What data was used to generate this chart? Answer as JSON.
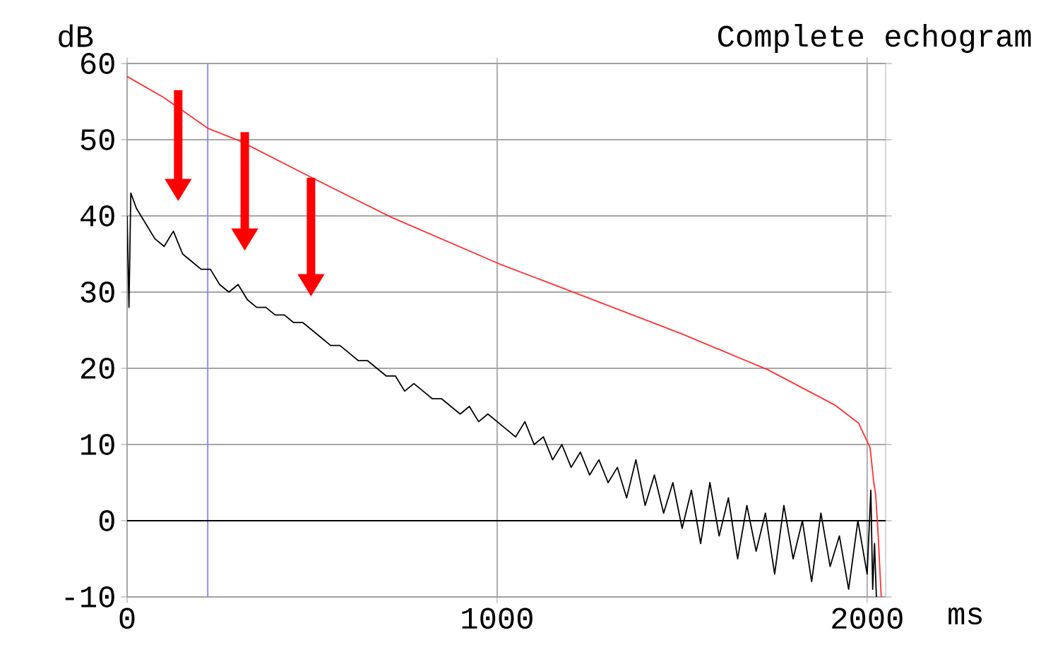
{
  "chart_data": {
    "type": "line",
    "title": "Complete echogram",
    "xlabel": "ms",
    "ylabel": "dB",
    "xlim": [
      0,
      2050
    ],
    "ylim": [
      -10,
      60
    ],
    "xticks": [
      0,
      1000,
      2000
    ],
    "yticks": [
      -10,
      0,
      10,
      20,
      30,
      40,
      50,
      60
    ],
    "grid": true,
    "marker": "none",
    "line_style": "solid",
    "ref_lines": [
      {
        "axis": "x",
        "value": 218,
        "color": "#8080ff"
      },
      {
        "axis": "y",
        "value": 0,
        "color": "#000000"
      }
    ],
    "series": [
      {
        "color": "#ff3030",
        "x": [
          0,
          100,
          218,
          306,
          500,
          715,
          1006,
          1216,
          1500,
          1732,
          1912,
          1977,
          2008,
          2018,
          2023,
          2030,
          2038
        ],
        "values": [
          58.3,
          55.5,
          51.5,
          49.8,
          45,
          39.8,
          33.7,
          29.8,
          24.5,
          19.8,
          15.2,
          12.8,
          9.6,
          5,
          3.5,
          -2,
          -10
        ]
      },
      {
        "color": "#000000",
        "x": [
          0,
          5,
          10,
          25,
          50,
          75,
          100,
          125,
          150,
          175,
          200,
          225,
          250,
          275,
          300,
          325,
          350,
          375,
          400,
          425,
          450,
          475,
          500,
          525,
          550,
          575,
          600,
          625,
          650,
          675,
          700,
          725,
          750,
          775,
          800,
          825,
          850,
          875,
          900,
          925,
          950,
          975,
          1000,
          1025,
          1050,
          1075,
          1100,
          1125,
          1150,
          1175,
          1200,
          1225,
          1250,
          1275,
          1300,
          1325,
          1350,
          1375,
          1400,
          1425,
          1450,
          1475,
          1500,
          1525,
          1550,
          1575,
          1600,
          1625,
          1650,
          1675,
          1700,
          1725,
          1750,
          1775,
          1800,
          1825,
          1850,
          1875,
          1900,
          1925,
          1950,
          1975,
          2000,
          2010,
          2015,
          2020,
          2025
        ],
        "values": [
          40,
          28,
          43,
          41,
          39,
          37,
          36,
          38,
          35,
          34,
          33,
          33,
          31,
          30,
          31,
          29,
          28,
          28,
          27,
          27,
          26,
          26,
          25,
          24,
          23,
          23,
          22,
          21,
          21,
          20,
          19,
          19,
          17,
          18,
          17,
          16,
          16,
          15,
          14,
          15,
          13,
          14,
          13,
          12,
          11,
          13,
          10,
          11,
          8,
          10,
          7,
          9,
          6,
          8,
          5,
          7,
          3,
          8,
          2,
          6,
          1,
          5,
          -1,
          4,
          -3,
          5,
          -2,
          3,
          -5,
          2,
          -4,
          1,
          -7,
          2,
          -5,
          0,
          -8,
          1,
          -6,
          -2,
          -9,
          0,
          -7,
          4,
          -9,
          -3,
          -10
        ]
      }
    ]
  }
}
